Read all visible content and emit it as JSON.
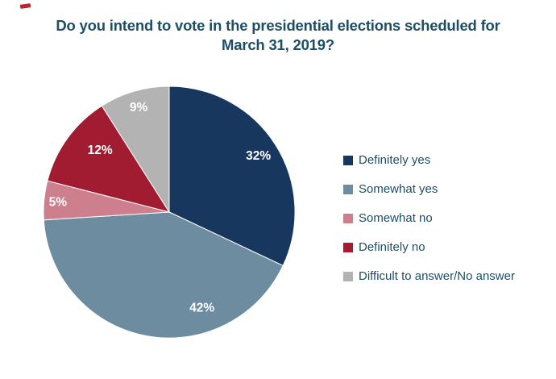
{
  "decoration": {
    "corner_mark_color": "#c5202e"
  },
  "chart_data": {
    "type": "pie",
    "title": "Do you intend to vote in the presidential elections scheduled for March 31, 2019?",
    "title_lines": [
      "Do you intend to vote in the presidential elections scheduled for",
      "March 31, 2019?"
    ],
    "legend_position": "right",
    "start_angle_deg": 0,
    "direction": "clockwise",
    "text_color": "#1d4e66",
    "data_label_color": "#ffffff",
    "slices": [
      {
        "label": "Definitely yes",
        "value": 32,
        "data_label": "32%",
        "color": "#17375e"
      },
      {
        "label": "Somewhat yes",
        "value": 42,
        "data_label": "42%",
        "color": "#6e8ca0"
      },
      {
        "label": "Somewhat no",
        "value": 5,
        "data_label": "5%",
        "color": "#cd7f8e"
      },
      {
        "label": "Definitely no",
        "value": 12,
        "data_label": "12%",
        "color": "#a11c31"
      },
      {
        "label": "Difficult to answer/No answer",
        "value": 9,
        "data_label": "9%",
        "color": "#b4b3b3"
      }
    ]
  }
}
